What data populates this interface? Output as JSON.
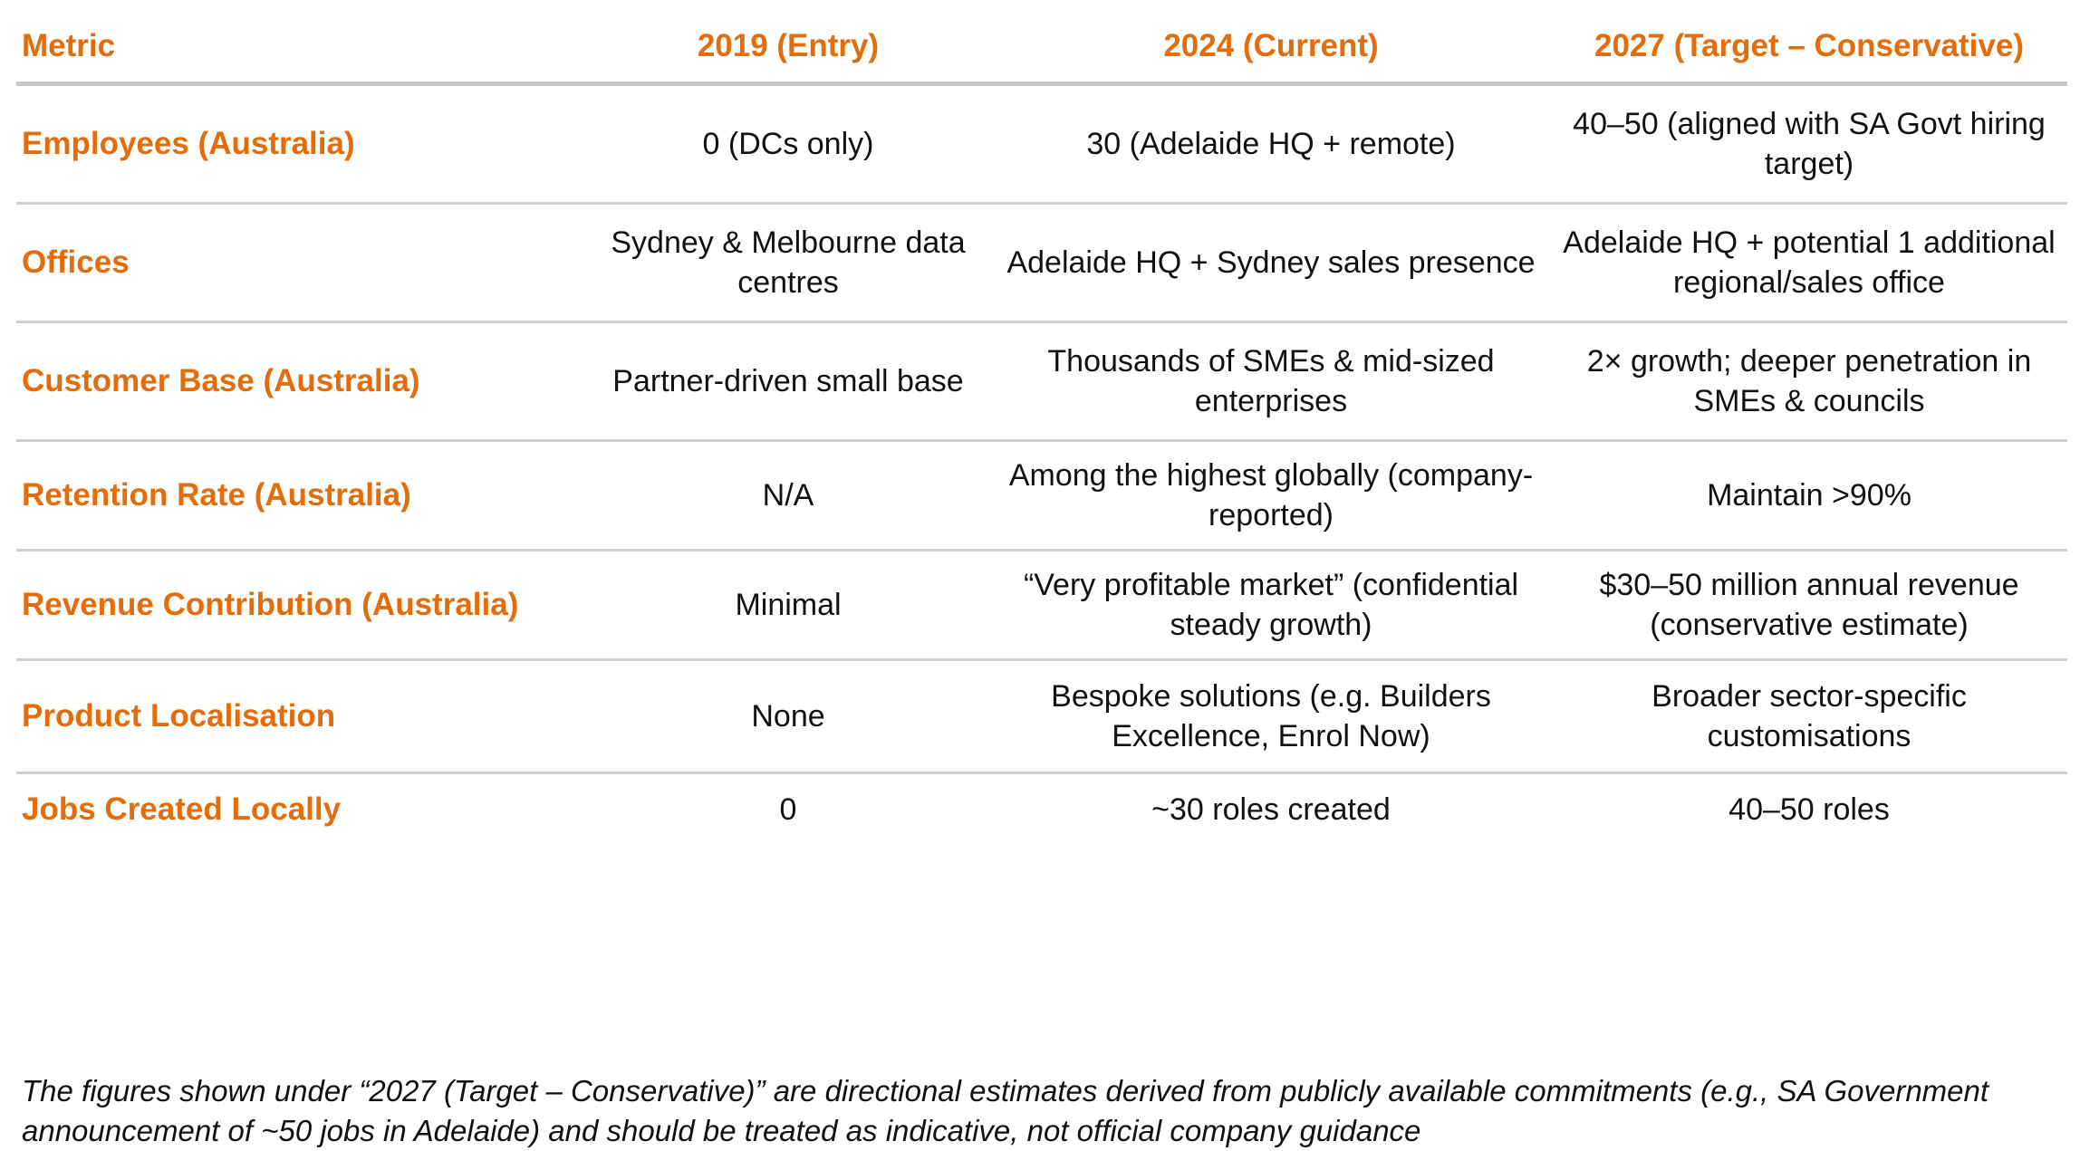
{
  "table": {
    "headers": [
      "Metric",
      "2019 (Entry)",
      "2024 (Current)",
      "2027 (Target – Conservative)"
    ],
    "rows": [
      {
        "metric": "Employees (Australia)",
        "y2019": "0 (DCs only)",
        "y2024": "30 (Adelaide HQ + remote)",
        "y2027": "40–50 (aligned with SA Govt hiring target)"
      },
      {
        "metric": "Offices",
        "y2019": "Sydney & Melbourne data centres",
        "y2024": "Adelaide HQ + Sydney sales presence",
        "y2027": "Adelaide HQ + potential 1 additional regional/sales office"
      },
      {
        "metric": "Customer Base (Australia)",
        "y2019": "Partner-driven small base",
        "y2024": "Thousands of SMEs & mid-sized enterprises",
        "y2027": "2× growth; deeper penetration in SMEs & councils"
      },
      {
        "metric": "Retention Rate (Australia)",
        "y2019": "N/A",
        "y2024": "Among the highest globally (company-reported)",
        "y2027": "Maintain >90%"
      },
      {
        "metric": "Revenue Contribution (Australia)",
        "y2019": "Minimal",
        "y2024": "“Very profitable market” (confidential steady growth)",
        "y2027": "$30–50 million annual revenue (conservative estimate)"
      },
      {
        "metric": "Product Localisation",
        "y2019": "None",
        "y2024": "Bespoke solutions (e.g. Builders Excellence, Enrol Now)",
        "y2027": "Broader sector-specific customisations"
      },
      {
        "metric": "Jobs Created Locally",
        "y2019": "0",
        "y2024": "~30 roles created",
        "y2027": "40–50 roles"
      }
    ]
  },
  "footnote": "The figures shown under “2027 (Target – Conservative)” are directional estimates derived from publicly available commitments (e.g., SA Government announcement of ~50 jobs in Adelaide) and should be treated as indicative, not official company guidance",
  "colors": {
    "accent": "#e46c0a",
    "rule": "#c8c8c8"
  }
}
